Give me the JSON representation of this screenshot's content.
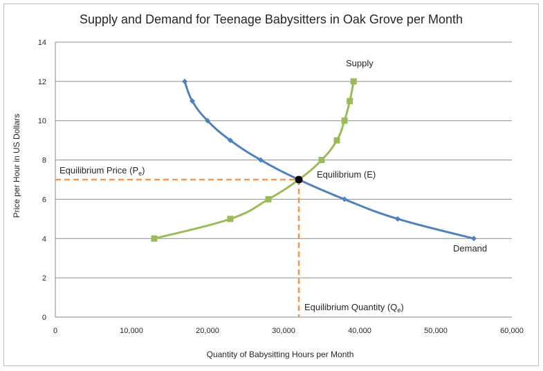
{
  "chart_data": {
    "type": "line",
    "title": "Supply and Demand for Teenage Babysitters  in Oak Grove per Month",
    "xlabel": "Quantity of Babysitting Hours per Month",
    "ylabel": "Price per Hour in US Dollars",
    "xlim": [
      0,
      60000
    ],
    "ylim": [
      0,
      14
    ],
    "x_ticks": [
      0,
      10000,
      20000,
      30000,
      40000,
      50000,
      60000
    ],
    "x_tick_labels": [
      "0",
      "10,000",
      "20,000",
      "30,000",
      "40,000",
      "50,000",
      "60,000"
    ],
    "y_ticks": [
      0,
      2,
      4,
      6,
      8,
      10,
      12,
      14
    ],
    "y_tick_labels": [
      "0",
      "2",
      "4",
      "6",
      "8",
      "10",
      "12",
      "14"
    ],
    "grid": true,
    "series": [
      {
        "name": "Demand",
        "color": "#4f81bd",
        "marker": "diamond",
        "points": [
          {
            "x": 17000,
            "y": 12
          },
          {
            "x": 18000,
            "y": 11
          },
          {
            "x": 20000,
            "y": 10
          },
          {
            "x": 23000,
            "y": 9
          },
          {
            "x": 27000,
            "y": 8
          },
          {
            "x": 32000,
            "y": 7
          },
          {
            "x": 38000,
            "y": 6
          },
          {
            "x": 45000,
            "y": 5
          },
          {
            "x": 55000,
            "y": 4
          }
        ]
      },
      {
        "name": "Supply",
        "color": "#9bbb59",
        "marker": "square",
        "points": [
          {
            "x": 13000,
            "y": 4
          },
          {
            "x": 23000,
            "y": 5
          },
          {
            "x": 28000,
            "y": 6
          },
          {
            "x": 32000,
            "y": 7
          },
          {
            "x": 35000,
            "y": 8
          },
          {
            "x": 37000,
            "y": 9
          },
          {
            "x": 38000,
            "y": 10
          },
          {
            "x": 38700,
            "y": 11
          },
          {
            "x": 39200,
            "y": 12
          }
        ]
      }
    ],
    "equilibrium": {
      "x": 32000,
      "y": 7,
      "color": "#000000"
    },
    "guide_color": "#f79646",
    "annotations": {
      "supply": "Supply",
      "demand": "Demand",
      "equilibrium": "Equilibrium (E)",
      "eq_price": "Equilibrium Price (P",
      "eq_price_sub": "e",
      "eq_price_close": ")",
      "eq_quantity": "Equilibrium Quantity (Q",
      "eq_quantity_sub": "e",
      "eq_quantity_close": ")"
    }
  }
}
